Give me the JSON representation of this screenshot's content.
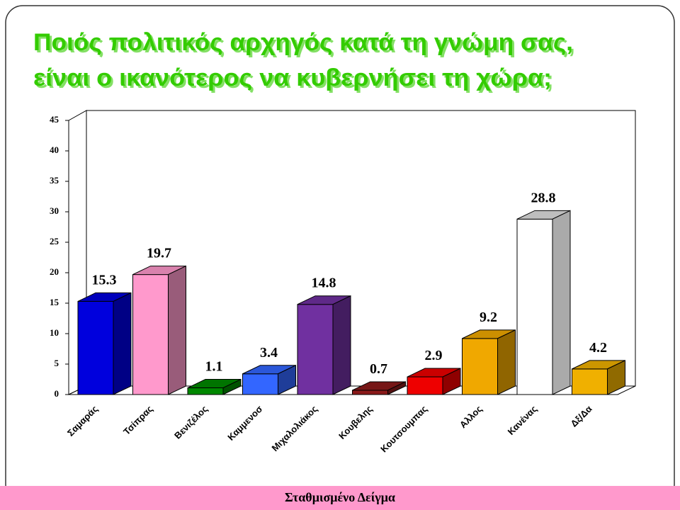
{
  "chart_data": {
    "type": "bar3d",
    "title": [
      "Ποιός πολιτικός αρχηγός κατά τη γνώμη σας,",
      "είναι ο ικανότερος να κυβερνήσει τη χώρα;"
    ],
    "categories": [
      "Σαμαράς",
      "Τσίπρας",
      "Βενιζέλος",
      "Καμμενοσ",
      "Μιχαλολιάκος",
      "Κουβελης",
      "Κουτσουμπας",
      "Αλλος",
      "Κανένας",
      "Δξ/Δα"
    ],
    "values": [
      15.3,
      19.7,
      1.1,
      3.4,
      14.8,
      0.7,
      2.9,
      9.2,
      28.8,
      4.2
    ],
    "colors": [
      "#0000dd",
      "#ff99cc",
      "#008800",
      "#3366ff",
      "#7030a0",
      "#8b1a1a",
      "#ee0000",
      "#f0a800",
      "#ffffff",
      "#f0b000"
    ],
    "ylim": [
      0,
      45
    ],
    "yticks": [
      0,
      5,
      10,
      15,
      20,
      25,
      30,
      35,
      40,
      45
    ],
    "footer": "Σταθμισμένο Δείγμα"
  }
}
